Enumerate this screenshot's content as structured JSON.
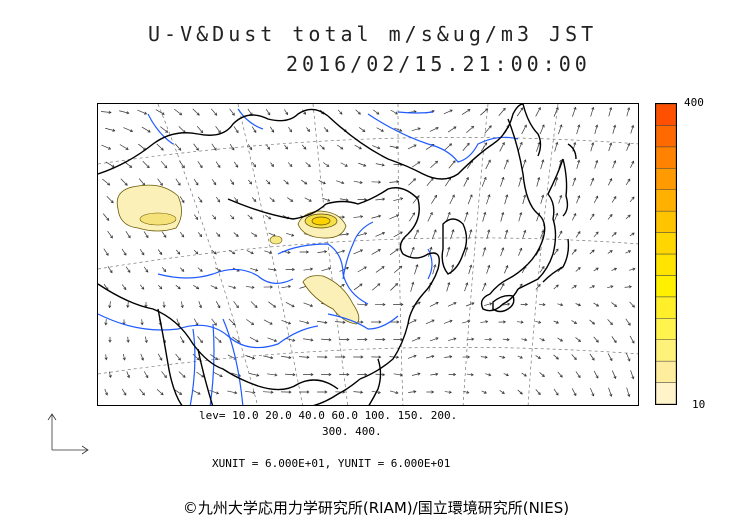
{
  "title": {
    "line1": "U-V&Dust total m/s&ug/m3 JST",
    "line2": "2016/02/15.21:00:00"
  },
  "colorbar": {
    "max_label": "400",
    "min_label": "10",
    "colors": [
      "#fff3c9",
      "#ffed9e",
      "#fff27a",
      "#fff34d",
      "#ffee2a",
      "#fff000",
      "#ffe400",
      "#ffd600",
      "#ffc400",
      "#ffb000",
      "#ff9a00",
      "#ff8300",
      "#ff6a00",
      "#ff5000"
    ]
  },
  "contour_info": {
    "line1": "lev= 10.0 20.0 40.0 60.0 100. 150. 200.",
    "line2": "300. 400.",
    "units": "XUNIT = 6.000E+01, YUNIT = 6.000E+01"
  },
  "credit": "©九州大学応用力学研究所(RIAM)/国立環境研究所(NIES)",
  "colors": {
    "coast": "#000000",
    "river": "#1e5bff",
    "dust_fill": "#fbf0b8",
    "grid": "#777777"
  }
}
